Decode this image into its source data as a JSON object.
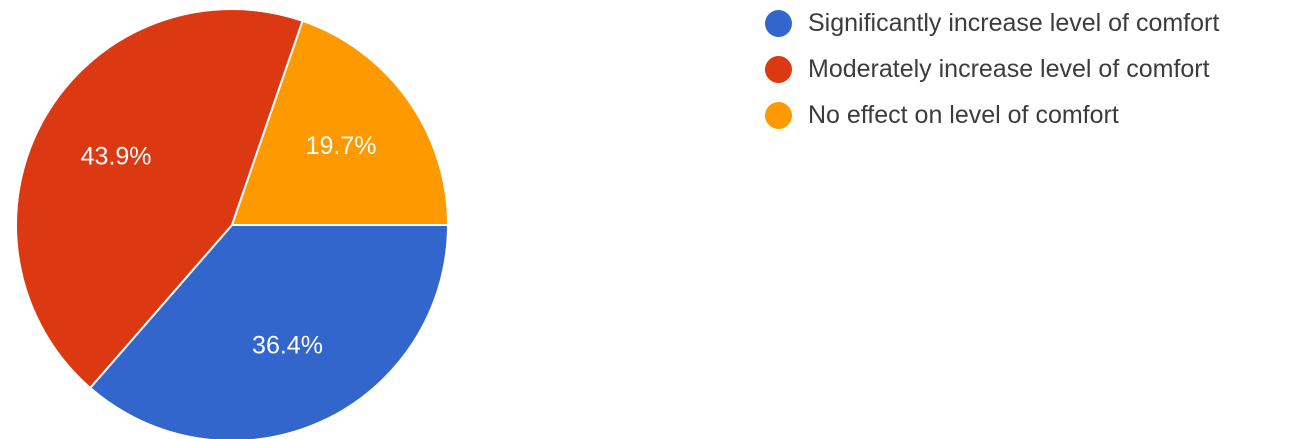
{
  "chart_data": {
    "type": "pie",
    "title": "",
    "slices": [
      {
        "label": "Significantly increase level of comfort",
        "value": 36.4,
        "display": "36.4%",
        "color": "#3366cc"
      },
      {
        "label": "Moderately increase level of comfort",
        "value": 43.9,
        "display": "43.9%",
        "color": "#dc3912"
      },
      {
        "label": "No effect on level of comfort",
        "value": 19.7,
        "display": "19.7%",
        "color": "#ff9900"
      }
    ],
    "legend_position": "right"
  }
}
